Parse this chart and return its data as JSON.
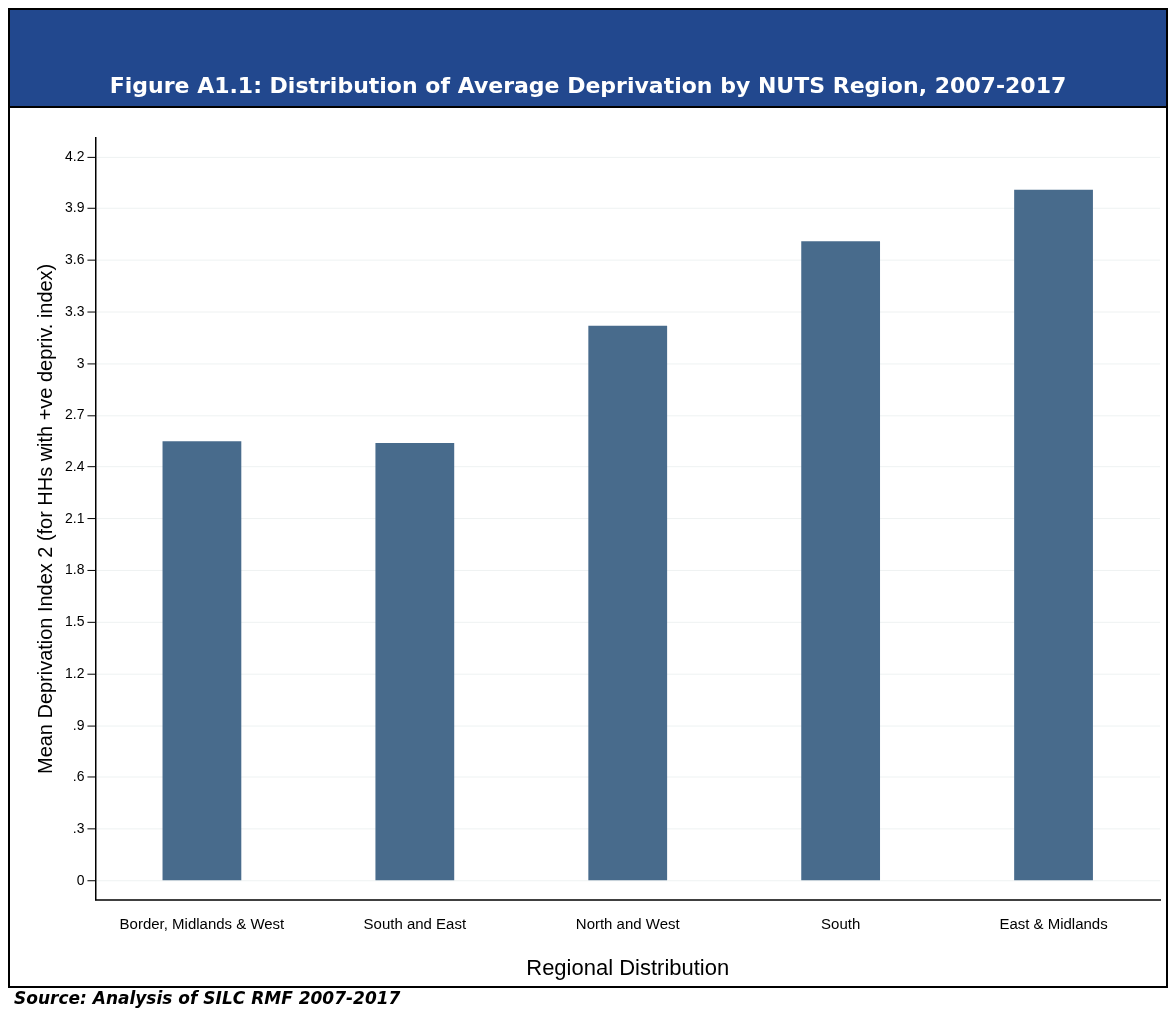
{
  "chart_data": {
    "type": "bar",
    "title": "Figure A1.1: Distribution of Average Deprivation by NUTS Region, 2007-2017",
    "xlabel": "Regional Distribution",
    "ylabel": "Mean Deprivation Index 2 (for HHs with +ve depriv. index)",
    "categories": [
      "Border, Midlands & West",
      "South and East",
      "North and West",
      "South",
      "East & Midlands"
    ],
    "values": [
      2.55,
      2.54,
      3.22,
      3.71,
      4.01
    ],
    "color": "#486b8c",
    "ylim": [
      -0.11,
      4.31
    ],
    "yticks": [
      0,
      {
        "value": 0.3,
        "label": ".3"
      },
      {
        "value": 0.6,
        "label": ".6"
      },
      {
        "value": 0.9,
        "label": ".9"
      },
      1.2,
      1.5,
      1.8,
      2.1,
      2.4,
      2.7,
      3,
      3.3,
      3.6,
      3.9,
      4.2
    ],
    "grid": "y",
    "annotations": [
      "Source: Analysis of SILC RMF 2007-2017"
    ]
  }
}
